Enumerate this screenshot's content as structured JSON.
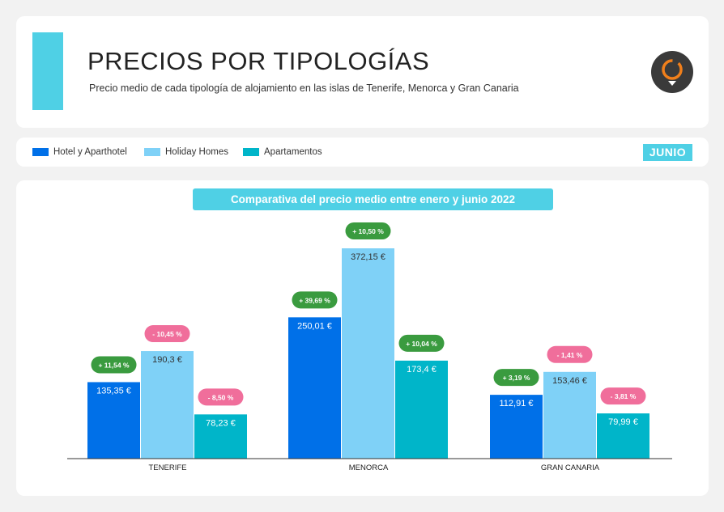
{
  "header": {
    "title": "PRECIOS POR TIPOLOGÍAS",
    "subtitle": "Precio medio de cada tipología de alojamiento en las islas de Tenerife, Menorca y Gran Canaria",
    "logo_icon": "location-pin-logo-icon"
  },
  "legend": {
    "items": [
      {
        "label": "Hotel y Aparthotel",
        "color": "#0070e8"
      },
      {
        "label": "Holiday Homes",
        "color": "#7fd1f7"
      },
      {
        "label": "Apartamentos",
        "color": "#00b5c9"
      }
    ],
    "month": "JUNIO"
  },
  "chart_data": {
    "type": "bar",
    "title": "Comparativa del precio medio entre enero y junio 2022",
    "categories": [
      "TENERIFE",
      "MENORCA",
      "GRAN CANARIA"
    ],
    "series": [
      {
        "name": "Hotel y Aparthotel",
        "color": "#0070e8",
        "values": [
          135.35,
          250.01,
          112.91
        ],
        "value_labels": [
          "135,35 €",
          "250,01 €",
          "112,91 €"
        ],
        "changes": [
          "+ 11,54 %",
          "+ 39,69 %",
          "+ 3,19 %"
        ],
        "change_direction": [
          "up",
          "up",
          "up"
        ]
      },
      {
        "name": "Holiday Homes",
        "color": "#7fd1f7",
        "values": [
          190.3,
          372.15,
          153.46
        ],
        "value_labels": [
          "190,3 €",
          "372,15 €",
          "153,46 €"
        ],
        "changes": [
          "- 10,45 %",
          "+ 10,50 %",
          "- 1,41 %"
        ],
        "change_direction": [
          "down",
          "up",
          "down"
        ]
      },
      {
        "name": "Apartamentos",
        "color": "#00b5c9",
        "values": [
          78.23,
          173.4,
          79.99
        ],
        "value_labels": [
          "78,23 €",
          "173,4 €",
          "79,99 €"
        ],
        "changes": [
          "- 8,50 %",
          "+ 10,04 %",
          "- 3,81 %"
        ],
        "change_direction": [
          "down",
          "up",
          "down"
        ]
      }
    ],
    "ylim": [
      0,
      372.15
    ],
    "grid": false,
    "legend_position": "top",
    "colors": {
      "up": "#3a9b3f",
      "down": "#f06e9b"
    }
  }
}
